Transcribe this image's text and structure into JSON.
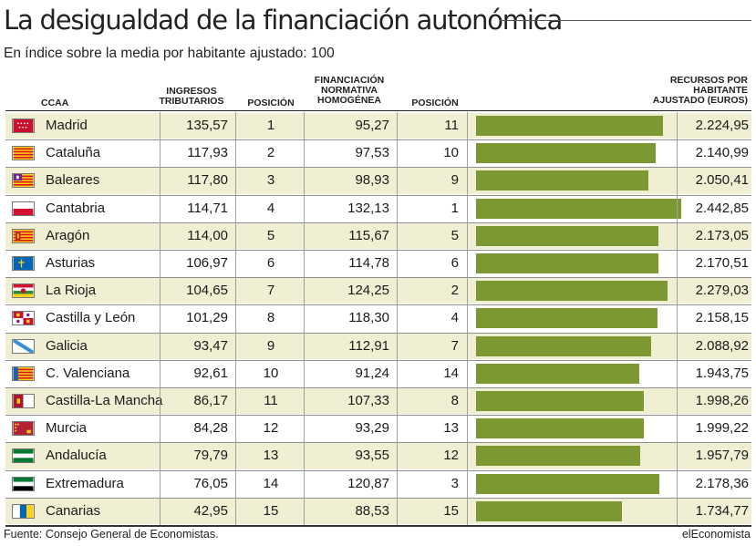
{
  "title": "La desigualdad de la financiación autonómica",
  "subtitle": "En índice sobre la media por habitante ajustado: 100",
  "columns": {
    "ccaa": "CCAA",
    "ingresos": "INGRESOS\nTRIBUTARIOS",
    "posicion1": "POSICIÓN",
    "financiacion": "FINANCIACIÓN\nNORMATIVA\nHOMOGÉNEA",
    "posicion2": "POSICIÓN",
    "recursos": "RECURSOS POR\nHABITANTE\nAJUSTADO (EUROS)"
  },
  "rows": [
    {
      "name": "Madrid",
      "ingresos": "135,57",
      "pos1": "1",
      "financiacion": "95,27",
      "pos2": "11",
      "recursos": "2.224,95"
    },
    {
      "name": "Cataluña",
      "ingresos": "117,93",
      "pos1": "2",
      "financiacion": "97,53",
      "pos2": "10",
      "recursos": "2.140,99"
    },
    {
      "name": "Baleares",
      "ingresos": "117,80",
      "pos1": "3",
      "financiacion": "98,93",
      "pos2": "9",
      "recursos": "2.050,41"
    },
    {
      "name": "Cantabria",
      "ingresos": "114,71",
      "pos1": "4",
      "financiacion": "132,13",
      "pos2": "1",
      "recursos": "2.442,85"
    },
    {
      "name": "Aragón",
      "ingresos": "114,00",
      "pos1": "5",
      "financiacion": "115,67",
      "pos2": "5",
      "recursos": "2.173,05"
    },
    {
      "name": "Asturias",
      "ingresos": "106,97",
      "pos1": "6",
      "financiacion": "114,78",
      "pos2": "6",
      "recursos": "2.170,51"
    },
    {
      "name": "La Rioja",
      "ingresos": "104,65",
      "pos1": "7",
      "financiacion": "124,25",
      "pos2": "2",
      "recursos": "2.279,03"
    },
    {
      "name": "Castilla y León",
      "ingresos": "101,29",
      "pos1": "8",
      "financiacion": "118,30",
      "pos2": "4",
      "recursos": "2.158,15"
    },
    {
      "name": "Galicia",
      "ingresos": "93,47",
      "pos1": "9",
      "financiacion": "112,91",
      "pos2": "7",
      "recursos": "2.088,92"
    },
    {
      "name": "C. Valenciana",
      "ingresos": "92,61",
      "pos1": "10",
      "financiacion": "91,24",
      "pos2": "14",
      "recursos": "1.943,75"
    },
    {
      "name": "Castilla-La Mancha",
      "ingresos": "86,17",
      "pos1": "11",
      "financiacion": "107,33",
      "pos2": "8",
      "recursos": "1.998,26"
    },
    {
      "name": "Murcia",
      "ingresos": "84,28",
      "pos1": "12",
      "financiacion": "93,29",
      "pos2": "13",
      "recursos": "1.999,22"
    },
    {
      "name": "Andalucía",
      "ingresos": "79,79",
      "pos1": "13",
      "financiacion": "93,55",
      "pos2": "12",
      "recursos": "1.957,79"
    },
    {
      "name": "Extremadura",
      "ingresos": "76,05",
      "pos1": "14",
      "financiacion": "120,87",
      "pos2": "3",
      "recursos": "2.178,36"
    },
    {
      "name": "Canarias",
      "ingresos": "42,95",
      "pos1": "15",
      "financiacion": "88,53",
      "pos2": "15",
      "recursos": "1.734,77"
    }
  ],
  "flags": [
    "madrid-flag-icon",
    "cataluna-flag-icon",
    "baleares-flag-icon",
    "cantabria-flag-icon",
    "aragon-flag-icon",
    "asturias-flag-icon",
    "la-rioja-flag-icon",
    "castilla-leon-flag-icon",
    "galicia-flag-icon",
    "valenciana-flag-icon",
    "castilla-la-mancha-flag-icon",
    "murcia-flag-icon",
    "andalucia-flag-icon",
    "extremadura-flag-icon",
    "canarias-flag-icon"
  ],
  "chart_data": {
    "type": "bar",
    "orientation": "horizontal",
    "categories": [
      "Madrid",
      "Cataluña",
      "Baleares",
      "Cantabria",
      "Aragón",
      "Asturias",
      "La Rioja",
      "Castilla y León",
      "Galicia",
      "C. Valenciana",
      "Castilla-La Mancha",
      "Murcia",
      "Andalucía",
      "Extremadura",
      "Canarias"
    ],
    "values": [
      2224.95,
      2140.99,
      2050.41,
      2442.85,
      2173.05,
      2170.51,
      2279.03,
      2158.15,
      2088.92,
      1943.75,
      1998.26,
      1999.22,
      1957.79,
      2178.36,
      1734.77
    ],
    "xlim": [
      0,
      2442.85
    ],
    "bar_color": "#7b9833",
    "band_color": "#f1efd3"
  },
  "colors": {
    "bar": "#7b9833",
    "band": "#f1efd3"
  },
  "footer": {
    "source": "Fuente: Consejo General de Economistas.",
    "brand": "elEconomista"
  }
}
